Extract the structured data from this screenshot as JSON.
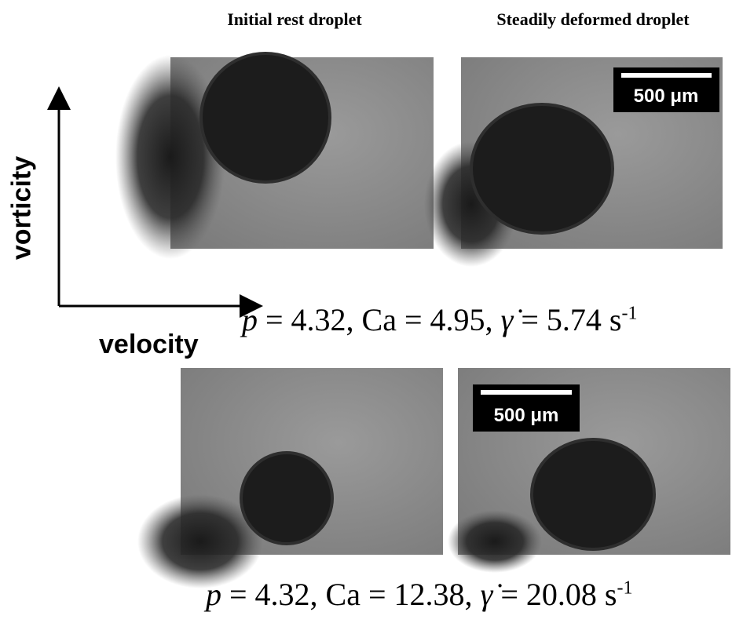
{
  "header": {
    "left": "Initial rest droplet",
    "right": "Steadily deformed droplet"
  },
  "axes": {
    "vertical": "vorticity",
    "horizontal": "velocity"
  },
  "rows": [
    {
      "caption": {
        "symbol": "p",
        "text": "= 4.32, Ca = 4.95,",
        "rate": "γ̇",
        "value": "= 5.74 s",
        "exponent": "-1"
      },
      "scale_bar": "500 μm"
    },
    {
      "caption": {
        "symbol": "p",
        "text": "= 4.32, Ca = 12.38,",
        "rate": "γ̇",
        "value": "= 20.08 s",
        "exponent": "-1"
      },
      "scale_bar": "500 μm"
    }
  ]
}
